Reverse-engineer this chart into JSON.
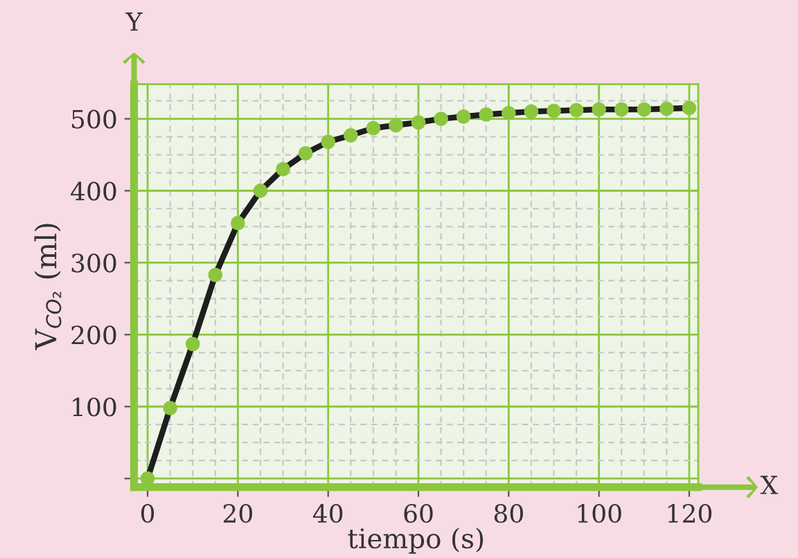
{
  "chart_data": {
    "type": "line",
    "xlabel": "tiempo (s)",
    "ylabel": "V$_{CO₂}$ (ml)",
    "annotations": [
      "Y",
      "X"
    ],
    "x": [
      0,
      5,
      10,
      15,
      20,
      25,
      30,
      35,
      40,
      45,
      50,
      55,
      60,
      65,
      70,
      75,
      80,
      85,
      90,
      95,
      100,
      105,
      110,
      115,
      120
    ],
    "series": [
      {
        "color": "#1e1e1e",
        "marker": "none",
        "values": [
          0,
          98,
          187,
          283,
          355,
          400,
          430,
          452,
          468,
          477,
          487,
          491,
          495,
          500,
          503,
          506,
          508,
          510,
          511,
          512,
          513,
          513,
          513,
          514,
          515
        ]
      },
      {
        "type": "scatter",
        "color": "#8cc63f",
        "marker": "circle",
        "values": [
          0,
          98,
          187,
          283,
          355,
          400,
          430,
          452,
          468,
          477,
          487,
          491,
          495,
          500,
          503,
          506,
          508,
          510,
          511,
          512,
          513,
          513,
          513,
          514,
          515
        ]
      }
    ],
    "line_style": "solid",
    "grid": true,
    "xlim": [
      -3,
      122
    ],
    "ylim": [
      -12,
      548
    ],
    "xticks": [
      0,
      20,
      40,
      60,
      80,
      100,
      120
    ],
    "yticks": [
      {
        "value": 0,
        "label": null
      },
      100,
      200,
      300,
      400,
      500
    ]
  }
}
